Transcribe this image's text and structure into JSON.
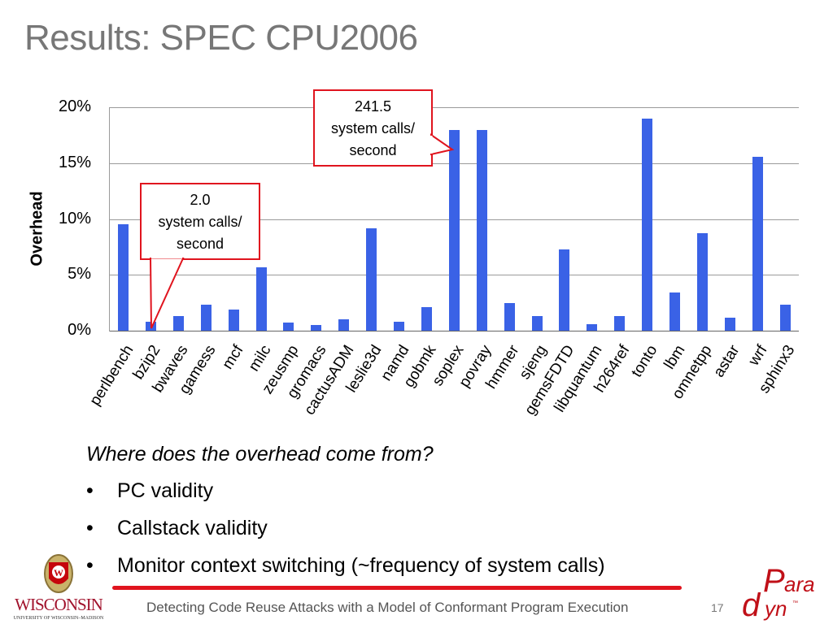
{
  "slide": {
    "title": "Results: SPEC CPU2006",
    "question": "Where does the overhead come from?",
    "bullets": [
      "PC validity",
      "Callstack validity",
      "Monitor context switching (~frequency of system calls)"
    ],
    "bullet_glyph": "•",
    "footer": "Detecting Code Reuse Attacks with a Model of Conformant Program Execution",
    "page_number": "17",
    "logos": {
      "left": {
        "name": "WISCONSIN",
        "subtitle": "UNIVERSITY OF WISCONSIN–MADISON",
        "crest_letter": "W"
      },
      "right": {
        "top": "ara",
        "big_p": "P",
        "bottom": "yn",
        "big_d": "d",
        "tm": "™"
      }
    },
    "callouts": [
      {
        "line1": "2.0",
        "line2": "system calls/",
        "line3": "second",
        "target": "bzip2"
      },
      {
        "line1": "241.5",
        "line2": "system calls/",
        "line3": "second",
        "target": "soplex"
      }
    ]
  },
  "colors": {
    "bar": "#3a62e6",
    "callout_border": "#e0141e",
    "title": "#777777",
    "accent_line": "#e0141e"
  },
  "chart_data": {
    "type": "bar",
    "title": "",
    "xlabel": "",
    "ylabel": "Overhead",
    "ylim": [
      0,
      20
    ],
    "yticks": [
      "0%",
      "5%",
      "10%",
      "15%",
      "20%"
    ],
    "grid": true,
    "legend": null,
    "categories": [
      "perlbench",
      "bzip2",
      "bwaves",
      "gamess",
      "mcf",
      "milc",
      "zeusmp",
      "gromacs",
      "cactusADM",
      "leslie3d",
      "namd",
      "gobmk",
      "soplex",
      "povray",
      "hmmer",
      "sjeng",
      "gemsFDTD",
      "libquantum",
      "h264ref",
      "tonto",
      "lbm",
      "omnetpp",
      "astar",
      "wrf",
      "sphinx3"
    ],
    "values": [
      9.5,
      0.8,
      1.3,
      2.3,
      1.9,
      5.7,
      0.7,
      0.5,
      1.0,
      9.2,
      0.8,
      2.1,
      18.0,
      18.0,
      2.5,
      1.3,
      7.3,
      0.6,
      1.3,
      19.0,
      3.4,
      8.7,
      1.2,
      15.6,
      2.3
    ],
    "unit": "%",
    "annotations": [
      {
        "category": "bzip2",
        "text": "2.0 system calls/ second"
      },
      {
        "category": "soplex",
        "text": "241.5 system calls/ second"
      }
    ]
  }
}
